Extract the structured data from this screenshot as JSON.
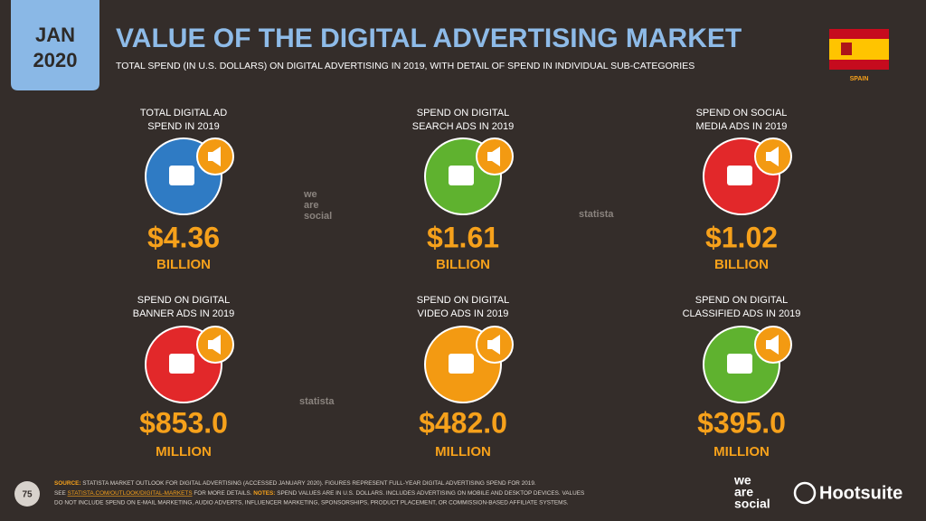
{
  "header": {
    "month": "JAN",
    "year": "2020",
    "title": "VALUE OF THE DIGITAL ADVERTISING MARKET",
    "subtitle": "TOTAL SPEND (IN U.S. DOLLARS) ON DIGITAL ADVERTISING IN 2019, WITH DETAIL OF SPEND IN INDIVIDUAL SUB-CATEGORIES",
    "country": "SPAIN"
  },
  "tiles": [
    {
      "label": [
        "TOTAL DIGITAL AD",
        "SPEND IN 2019"
      ],
      "value": "$4.36",
      "unit": "BILLION"
    },
    {
      "label": [
        "SPEND ON DIGITAL",
        "SEARCH ADS IN 2019"
      ],
      "value": "$1.61",
      "unit": "BILLION"
    },
    {
      "label": [
        "SPEND ON SOCIAL",
        "MEDIA ADS IN 2019"
      ],
      "value": "$1.02",
      "unit": "BILLION"
    },
    {
      "label": [
        "SPEND ON DIGITAL",
        "BANNER ADS IN 2019"
      ],
      "value": "$853.0",
      "unit": "MILLION"
    },
    {
      "label": [
        "SPEND ON DIGITAL",
        "VIDEO ADS IN 2019"
      ],
      "value": "$482.0",
      "unit": "MILLION"
    },
    {
      "label": [
        "SPEND ON DIGITAL",
        "CLASSIFIED ADS IN 2019"
      ],
      "value": "$395.0",
      "unit": "MILLION"
    }
  ],
  "watermarks": {
    "we": "we",
    "are": "are",
    "social": "social",
    "statista": "statista"
  },
  "footer": {
    "page": "75",
    "source_label": "SOURCE:",
    "source_text": "STATISTA MARKET OUTLOOK FOR DIGITAL ADVERTISING (ACCESSED JANUARY 2020). FIGURES REPRESENT FULL-YEAR DIGITAL ADVERTISING SPEND FOR 2019.",
    "see": "SEE",
    "link": "STATISTA.COM/OUTLOOK/DIGITAL-MARKETS",
    "more": "FOR MORE DETAILS.",
    "notes_label": "NOTES:",
    "notes_lines": [
      "SPEND VALUES ARE IN U.S. DOLLARS. INCLUDES ADVERTISING ON MOBILE AND DESKTOP DEVICES. VALUES",
      "DO NOT INCLUDE SPEND ON E-MAIL MARKETING, AUDIO ADVERTS, INFLUENCER MARKETING, SPONSORSHIPS, PRODUCT PLACEMENT, OR COMMISSION-BASED AFFILIATE SYSTEMS."
    ],
    "brand1": [
      "we",
      "are",
      "social"
    ],
    "brand2": "Hootsuite"
  }
}
